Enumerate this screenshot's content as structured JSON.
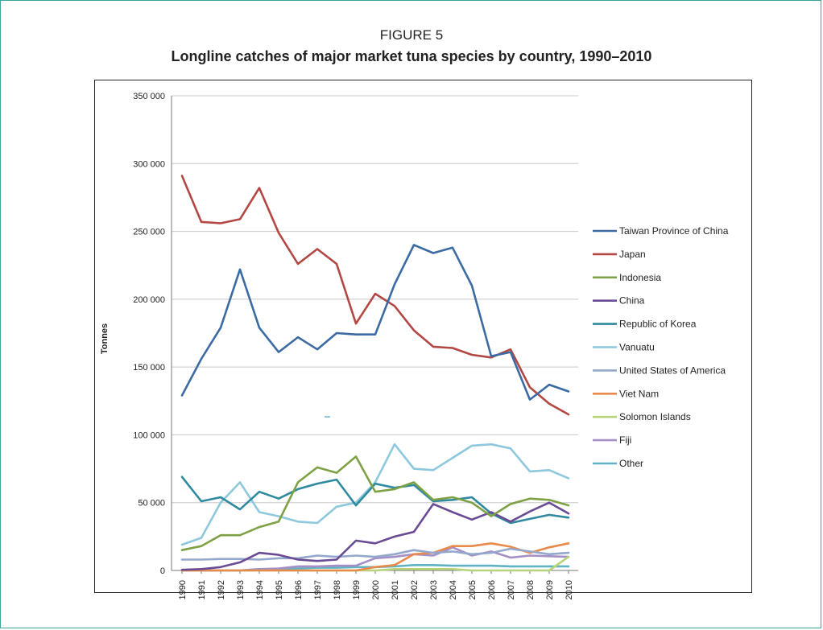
{
  "figure_label": "FIGURE 5",
  "figure_title": "Longline catches of major market tuna species by country, 1990–2010",
  "chart_data": {
    "type": "line",
    "title": "Longline catches of major market tuna species by country, 1990–2010",
    "xlabel": "",
    "ylabel": "Tonnes",
    "ylim": [
      0,
      350000
    ],
    "yticks": [
      0,
      50000,
      100000,
      150000,
      200000,
      250000,
      300000,
      350000
    ],
    "ytick_labels": [
      "0",
      "50 000",
      "100 000",
      "150 000",
      "200 000",
      "250 000",
      "300 000",
      "350 000"
    ],
    "grid": "horizontal",
    "legend_position": "right",
    "x": [
      "1990",
      "1991",
      "1992",
      "1993",
      "1994",
      "1995",
      "1996",
      "1997",
      "1998",
      "1999",
      "2000",
      "2001",
      "2002",
      "2003",
      "2004",
      "2005",
      "2006",
      "2007",
      "2008",
      "2009",
      "2010"
    ],
    "series": [
      {
        "name": "Taiwan Province of China",
        "color": "#3c6aa3",
        "values": [
          129000,
          156000,
          179000,
          222000,
          179000,
          161000,
          172000,
          163000,
          175000,
          174000,
          174000,
          211000,
          240000,
          234000,
          238000,
          210000,
          158000,
          161000,
          126000,
          137000,
          132000
        ]
      },
      {
        "name": "Japan",
        "color": "#b24744",
        "values": [
          291000,
          257000,
          256000,
          259000,
          282000,
          249000,
          226000,
          237000,
          226000,
          182000,
          204000,
          195000,
          177000,
          165000,
          164000,
          159000,
          157000,
          163000,
          135000,
          123000,
          115000
        ]
      },
      {
        "name": "Indonesia",
        "color": "#7fa146",
        "values": [
          15000,
          18000,
          26000,
          26000,
          32000,
          36000,
          65000,
          76000,
          72000,
          84000,
          58000,
          60000,
          65000,
          52000,
          54000,
          50000,
          40000,
          49000,
          53000,
          52000,
          48000
        ]
      },
      {
        "name": "China",
        "color": "#6a4c94",
        "values": [
          500,
          1000,
          2500,
          6000,
          13000,
          11500,
          8000,
          7000,
          8000,
          22000,
          20000,
          25000,
          28500,
          49000,
          43000,
          37500,
          43000,
          36000,
          43500,
          50000,
          42000
        ]
      },
      {
        "name": "Republic of Korea",
        "color": "#2f8aa0",
        "values": [
          69000,
          51000,
          54000,
          45000,
          58000,
          53000,
          60000,
          64000,
          67000,
          48000,
          64000,
          61000,
          63000,
          51000,
          52000,
          54000,
          42000,
          35000,
          38000,
          41000,
          39000
        ]
      },
      {
        "name": "Vanuatu",
        "color": "#8ec8dc",
        "values": [
          19000,
          24000,
          50000,
          65000,
          43000,
          40000,
          36000,
          35000,
          47000,
          50000,
          65000,
          93000,
          75000,
          74000,
          83000,
          92000,
          93000,
          90000,
          73000,
          74000,
          68000
        ]
      },
      {
        "name": "United States of America",
        "color": "#93a8cc",
        "values": [
          8000,
          8000,
          8500,
          8500,
          8000,
          9000,
          9000,
          11000,
          10000,
          11000,
          10000,
          12000,
          15000,
          13000,
          14000,
          12000,
          13000,
          16000,
          14000,
          12000,
          13000
        ]
      },
      {
        "name": "Viet Nam",
        "color": "#e88a4a",
        "values": [
          0,
          0,
          0,
          0,
          0,
          0,
          0,
          0,
          0,
          0,
          2500,
          4000,
          12000,
          13000,
          18000,
          18000,
          20000,
          17500,
          13000,
          17000,
          20000
        ]
      },
      {
        "name": "Solomon Islands",
        "color": "#b8d47a",
        "values": [
          0,
          0,
          0,
          0,
          0,
          0,
          0,
          0,
          0,
          0,
          0,
          1000,
          1000,
          1000,
          1000,
          0,
          0,
          0,
          0,
          0,
          10000
        ]
      },
      {
        "name": "Fiji",
        "color": "#a58fc7",
        "values": [
          0,
          0,
          0,
          0,
          1000,
          1500,
          3000,
          3000,
          3500,
          3500,
          9000,
          10000,
          12000,
          11000,
          17000,
          11000,
          14000,
          9500,
          11000,
          10500,
          10000
        ]
      },
      {
        "name": "Other",
        "color": "#5fb3c2",
        "values": [
          0,
          0,
          0,
          0,
          1000,
          1000,
          1500,
          2000,
          2000,
          2500,
          2500,
          3000,
          4000,
          4000,
          3500,
          3500,
          3500,
          3000,
          3000,
          3000,
          3000
        ]
      }
    ]
  }
}
